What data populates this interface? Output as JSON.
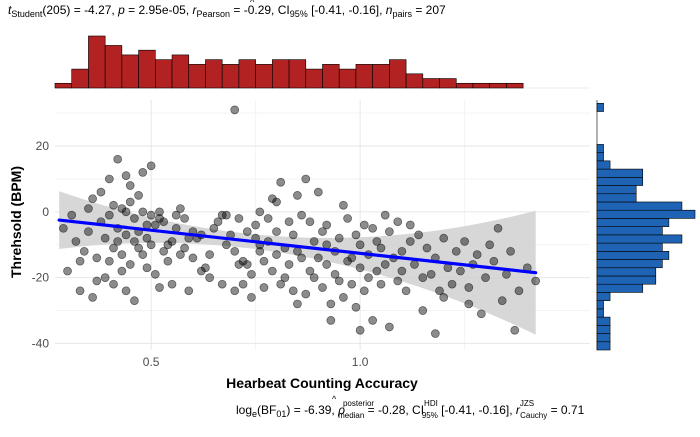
{
  "header": {
    "t_sym": "t",
    "t_sub": "Student",
    "t_rest": "(205) = -4.27, ",
    "p_sym": "p",
    "p_rest": " = 2.95e-05, ",
    "r_sym": "r",
    "r_sub": "Pearson",
    "r_rest": " = -0.29, CI",
    "ci_sub": "95%",
    "ci_rest": " [-0.41, -0.16], ",
    "n_sym": "n",
    "n_sub": "pairs",
    "n_rest": " = 207"
  },
  "footer": {
    "log_pre": "log",
    "log_sub": "e",
    "bf_pre": "(BF",
    "bf_sub": "01",
    "bf_rest": ") = -6.39, ",
    "rho_sym": "ρ",
    "rho_sup": "posterior",
    "rho_sub": "median",
    "rho_rest": " = -0.28, CI",
    "ci_sup": "HDI",
    "ci_sub": "95%",
    "ci_rest": " [-0.41, -0.16], ",
    "r_sym": "r",
    "r_sup": "JZS",
    "r_sub": "Cauchy",
    "r_rest": " = 0.71"
  },
  "chart_data": {
    "type": "scatter",
    "xlabel": "Hearbeat Counting Accuracy",
    "ylabel": "Threhsold (BPM)",
    "xlim": [
      0.27,
      1.55
    ],
    "ylim": [
      -42,
      34
    ],
    "x_ticks": [
      0.5,
      1.0
    ],
    "x_tick_labels": [
      "0.5",
      "1.0"
    ],
    "y_ticks": [
      -40,
      -20,
      0,
      20
    ],
    "y_tick_labels": [
      "-40",
      "-20",
      "0",
      "20"
    ],
    "grid": true,
    "colors": {
      "points": "#000000",
      "regression": "#0000ff",
      "ci_band": "#d0d0d0",
      "x_histogram": "#b22222",
      "y_histogram": "#1f64b4"
    },
    "regression": {
      "x": [
        0.28,
        1.42
      ],
      "y": [
        -2.5,
        -18.5
      ]
    },
    "points": [
      [
        0.29,
        -5
      ],
      [
        0.31,
        -1
      ],
      [
        0.32,
        -9
      ],
      [
        0.33,
        -24
      ],
      [
        0.34,
        -12
      ],
      [
        0.35,
        -6
      ],
      [
        0.35,
        1
      ],
      [
        0.36,
        4
      ],
      [
        0.37,
        -14
      ],
      [
        0.37,
        -21
      ],
      [
        0.38,
        6
      ],
      [
        0.38,
        -3
      ],
      [
        0.39,
        -8
      ],
      [
        0.39,
        -20
      ],
      [
        0.4,
        -1
      ],
      [
        0.4,
        -15
      ],
      [
        0.41,
        2
      ],
      [
        0.41,
        -11
      ],
      [
        0.41,
        -22
      ],
      [
        0.42,
        -5
      ],
      [
        0.42,
        16
      ],
      [
        0.42,
        -9
      ],
      [
        0.43,
        1
      ],
      [
        0.43,
        -13
      ],
      [
        0.43,
        -18
      ],
      [
        0.44,
        -24
      ],
      [
        0.44,
        0
      ],
      [
        0.44,
        -7
      ],
      [
        0.45,
        3
      ],
      [
        0.45,
        -16
      ],
      [
        0.45,
        8
      ],
      [
        0.46,
        -2
      ],
      [
        0.46,
        -27
      ],
      [
        0.47,
        -6
      ],
      [
        0.47,
        -11
      ],
      [
        0.47,
        5
      ],
      [
        0.48,
        -13
      ],
      [
        0.48,
        0
      ],
      [
        0.48,
        12
      ],
      [
        0.49,
        -4
      ],
      [
        0.49,
        -17
      ],
      [
        0.49,
        -8
      ],
      [
        0.5,
        -1
      ],
      [
        0.5,
        -10
      ],
      [
        0.5,
        14
      ],
      [
        0.51,
        -4
      ],
      [
        0.51,
        -19
      ],
      [
        0.52,
        -23
      ],
      [
        0.52,
        0
      ],
      [
        0.52,
        -2
      ],
      [
        0.53,
        -3
      ],
      [
        0.53,
        -12
      ],
      [
        0.54,
        -15
      ],
      [
        0.55,
        -9
      ],
      [
        0.55,
        -22
      ],
      [
        0.56,
        -1
      ],
      [
        0.56,
        -5
      ],
      [
        0.57,
        1
      ],
      [
        0.57,
        -13
      ],
      [
        0.58,
        -11
      ],
      [
        0.58,
        -2
      ],
      [
        0.59,
        -24
      ],
      [
        0.59,
        -8
      ],
      [
        0.6,
        -14
      ],
      [
        0.61,
        -8
      ],
      [
        0.62,
        -7
      ],
      [
        0.62,
        -18
      ],
      [
        0.63,
        -17
      ],
      [
        0.64,
        -13
      ],
      [
        0.65,
        -5
      ],
      [
        0.66,
        -3
      ],
      [
        0.67,
        -1
      ],
      [
        0.68,
        -1
      ],
      [
        0.68,
        -10
      ],
      [
        0.69,
        -7
      ],
      [
        0.7,
        -12
      ],
      [
        0.7,
        -24
      ],
      [
        0.7,
        31
      ],
      [
        0.71,
        -16
      ],
      [
        0.71,
        -2
      ],
      [
        0.72,
        -15
      ],
      [
        0.72,
        -22
      ],
      [
        0.73,
        -6
      ],
      [
        0.74,
        -19
      ],
      [
        0.74,
        -26
      ],
      [
        0.75,
        -8
      ],
      [
        0.75,
        -4
      ],
      [
        0.76,
        0
      ],
      [
        0.76,
        -12
      ],
      [
        0.77,
        -15
      ],
      [
        0.77,
        -23
      ],
      [
        0.78,
        -2
      ],
      [
        0.78,
        -9
      ],
      [
        0.79,
        -18
      ],
      [
        0.79,
        4
      ],
      [
        0.8,
        -6
      ],
      [
        0.8,
        -13
      ],
      [
        0.8,
        3
      ],
      [
        0.81,
        -22
      ],
      [
        0.81,
        9
      ],
      [
        0.82,
        -20
      ],
      [
        0.82,
        -11
      ],
      [
        0.83,
        -16
      ],
      [
        0.83,
        -3
      ],
      [
        0.84,
        -24
      ],
      [
        0.84,
        -7
      ],
      [
        0.85,
        5
      ],
      [
        0.85,
        -12
      ],
      [
        0.86,
        -1
      ],
      [
        0.86,
        -14
      ],
      [
        0.87,
        -25
      ],
      [
        0.87,
        10
      ],
      [
        0.88,
        -3
      ],
      [
        0.88,
        -18
      ],
      [
        0.89,
        -9
      ],
      [
        0.89,
        -20
      ],
      [
        0.9,
        6
      ],
      [
        0.9,
        -14
      ],
      [
        0.91,
        -6
      ],
      [
        0.91,
        -23
      ],
      [
        0.92,
        -10
      ],
      [
        0.92,
        -16
      ],
      [
        0.93,
        -28
      ],
      [
        0.93,
        -33
      ],
      [
        0.94,
        -12
      ],
      [
        0.94,
        -19
      ],
      [
        0.95,
        -8
      ],
      [
        0.95,
        -21
      ],
      [
        0.96,
        2
      ],
      [
        0.96,
        -26
      ],
      [
        0.97,
        -15
      ],
      [
        0.97,
        -2
      ],
      [
        0.98,
        -14
      ],
      [
        0.98,
        -22
      ],
      [
        0.99,
        -7
      ],
      [
        0.99,
        -29
      ],
      [
        1.0,
        -17
      ],
      [
        1.0,
        -10
      ],
      [
        1.01,
        -4
      ],
      [
        1.01,
        -24
      ],
      [
        1.02,
        -13
      ],
      [
        1.02,
        -20
      ],
      [
        1.03,
        -5
      ],
      [
        1.03,
        -33
      ],
      [
        1.04,
        -18
      ],
      [
        1.04,
        -9
      ],
      [
        1.05,
        -11
      ],
      [
        1.05,
        -22
      ],
      [
        1.06,
        -1
      ],
      [
        1.06,
        -16
      ],
      [
        1.07,
        -6
      ],
      [
        1.07,
        -35
      ],
      [
        1.08,
        -14
      ],
      [
        1.09,
        -21
      ],
      [
        1.09,
        -3
      ],
      [
        1.1,
        -12
      ],
      [
        1.1,
        -18
      ],
      [
        1.11,
        -24
      ],
      [
        1.12,
        -9
      ],
      [
        1.13,
        -16
      ],
      [
        1.14,
        -7
      ],
      [
        1.15,
        -20
      ],
      [
        1.15,
        -30
      ],
      [
        1.16,
        -11
      ],
      [
        1.17,
        -19
      ],
      [
        1.18,
        -14
      ],
      [
        1.18,
        -37
      ],
      [
        1.19,
        -24
      ],
      [
        1.2,
        -26
      ],
      [
        1.21,
        -17
      ],
      [
        1.22,
        -22
      ],
      [
        1.23,
        -12
      ],
      [
        1.24,
        -18
      ],
      [
        1.25,
        -9
      ],
      [
        1.26,
        -23
      ],
      [
        1.26,
        -28
      ],
      [
        1.27,
        -16
      ],
      [
        1.28,
        -13
      ],
      [
        1.29,
        -31
      ],
      [
        1.3,
        -20
      ],
      [
        1.31,
        -10
      ],
      [
        1.32,
        -15
      ],
      [
        1.33,
        -5
      ],
      [
        1.34,
        -27
      ],
      [
        1.35,
        -19
      ],
      [
        1.36,
        -12
      ],
      [
        1.37,
        -36
      ],
      [
        1.38,
        -24
      ],
      [
        1.4,
        -17
      ],
      [
        1.42,
        -21
      ],
      [
        0.3,
        -18
      ],
      [
        0.33,
        -15
      ],
      [
        0.36,
        -26
      ],
      [
        0.4,
        10
      ],
      [
        0.44,
        11
      ],
      [
        0.46,
        -9
      ],
      [
        0.54,
        -10
      ],
      [
        0.6,
        -6
      ],
      [
        0.64,
        -20
      ],
      [
        0.67,
        -22
      ],
      [
        0.73,
        -16
      ],
      [
        0.76,
        -10
      ],
      [
        0.85,
        -28
      ],
      [
        0.92,
        -4
      ],
      [
        1.0,
        -36
      ],
      [
        1.12,
        -4
      ],
      [
        1.2,
        -8
      ]
    ],
    "x_histogram": {
      "bin_edges": [
        0.27,
        0.31,
        0.35,
        0.39,
        0.43,
        0.47,
        0.51,
        0.55,
        0.59,
        0.63,
        0.67,
        0.71,
        0.75,
        0.79,
        0.83,
        0.87,
        0.91,
        0.95,
        0.99,
        1.03,
        1.07,
        1.11,
        1.15,
        1.19,
        1.23,
        1.27,
        1.31,
        1.35,
        1.39,
        1.43,
        1.47,
        1.51,
        1.55
      ],
      "counts": [
        1,
        4,
        11,
        9,
        7,
        8,
        6,
        7,
        5,
        6,
        5,
        6,
        5,
        6,
        6,
        4,
        5,
        4,
        5,
        5,
        6,
        3,
        2,
        2,
        1,
        1,
        1,
        1,
        0,
        0,
        0,
        0
      ]
    },
    "y_histogram": {
      "bin_edges": [
        -42,
        -39.5,
        -37,
        -34.5,
        -32,
        -29.5,
        -27,
        -24.5,
        -22,
        -19.5,
        -17,
        -14.5,
        -12,
        -9.5,
        -7,
        -4.5,
        -2,
        0.5,
        3,
        5.5,
        8,
        10.5,
        13,
        15.5,
        18,
        20.5,
        23,
        25.5,
        28,
        30.5,
        33
      ],
      "counts": [
        2,
        2,
        2,
        2,
        1,
        1,
        2,
        7,
        9,
        9,
        10,
        11,
        10,
        13,
        10,
        11,
        15,
        13,
        6,
        6,
        7,
        7,
        2,
        1,
        1,
        0,
        0,
        0,
        0,
        1
      ]
    }
  }
}
